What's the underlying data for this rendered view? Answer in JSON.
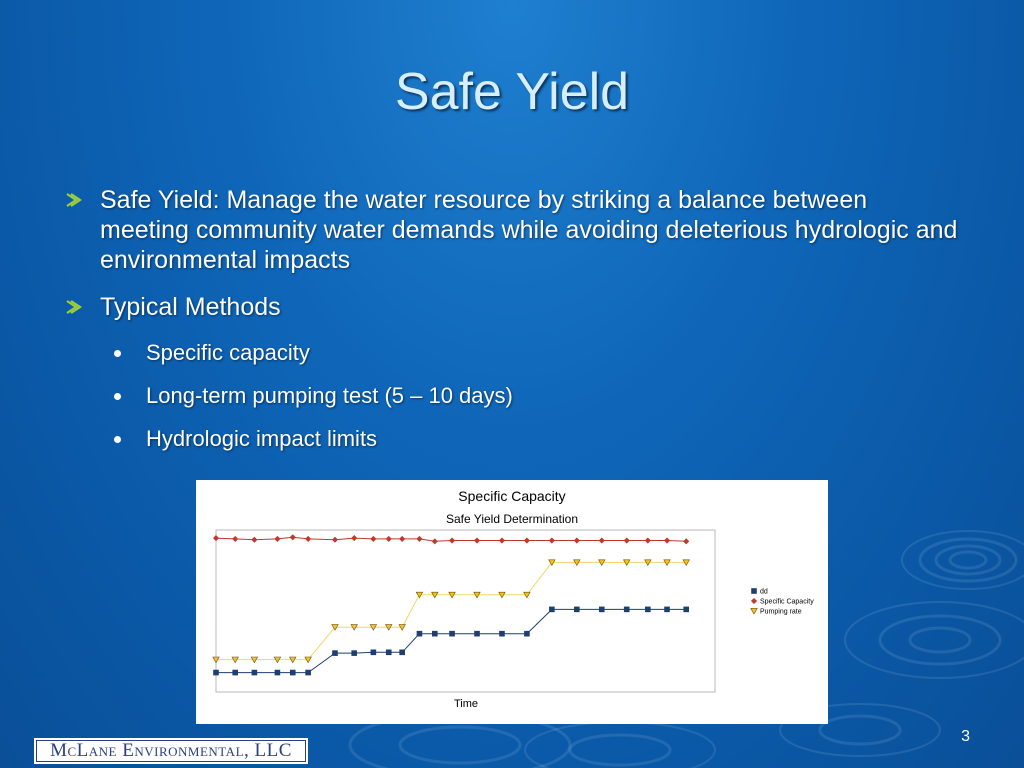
{
  "slide": {
    "title": "Safe Yield",
    "page_number": "3",
    "bullets": [
      {
        "text": "Safe Yield: Manage the water resource by striking a balance between meeting community water demands while avoiding deleterious hydrologic and environmental impacts"
      },
      {
        "text": "Typical Methods"
      }
    ],
    "sub_bullets": [
      {
        "text": "Specific capacity"
      },
      {
        "text": "Long-term pumping test (5 – 10 days)"
      },
      {
        "text": "Hydrologic impact limits"
      }
    ]
  },
  "footer": {
    "logo_text": "McLane Environmental, LLC"
  },
  "colors": {
    "title": "#d6eeff",
    "bullet_arrow": "#9ccf3a",
    "dd_series": "#1f3f6f",
    "specific_capacity_series": "#c0392b",
    "pumping_rate_series": "#f2c12e",
    "logo": "#2b3f86"
  },
  "chart_data": {
    "type": "line",
    "title": "Specific Capacity",
    "subtitle": "Safe Yield Determination",
    "xlabel": "Time",
    "ylabel": "",
    "xlim": [
      0,
      26
    ],
    "ylim": [
      0,
      100
    ],
    "grid": false,
    "legend_position": "right",
    "x": [
      0,
      1,
      2,
      3.2,
      4,
      4.8,
      6.2,
      7.2,
      8.2,
      9,
      9.7,
      10.6,
      11.4,
      12.3,
      13.6,
      14.9,
      16.2,
      17.5,
      18.8,
      20.1,
      21.4,
      22.5,
      23.5,
      24.5
    ],
    "series": [
      {
        "name": "dd",
        "marker": "square",
        "color": "#1f3f6f",
        "values": [
          12,
          12,
          12,
          12,
          12,
          12,
          24,
          24,
          24.5,
          24.5,
          24.5,
          36,
          36,
          36,
          36,
          36,
          36,
          51,
          51,
          51,
          51,
          51,
          51,
          51
        ]
      },
      {
        "name": "Specific Capacity",
        "marker": "diamond",
        "color": "#c0392b",
        "values": [
          95,
          94.5,
          94,
          94.5,
          95.5,
          94.5,
          94,
          95,
          94.5,
          94.5,
          94.5,
          94.5,
          93,
          93.5,
          93.5,
          93.5,
          93.5,
          93.5,
          93.5,
          93.5,
          93.5,
          93.5,
          93.5,
          93
        ]
      },
      {
        "name": "Pumping rate",
        "marker": "triangle",
        "color": "#f2c12e",
        "values": [
          20,
          20,
          20,
          20,
          20,
          20,
          40,
          40,
          40,
          40,
          40,
          60,
          60,
          60,
          60,
          60,
          60,
          80,
          80,
          80,
          80,
          80,
          80,
          80
        ]
      }
    ]
  }
}
